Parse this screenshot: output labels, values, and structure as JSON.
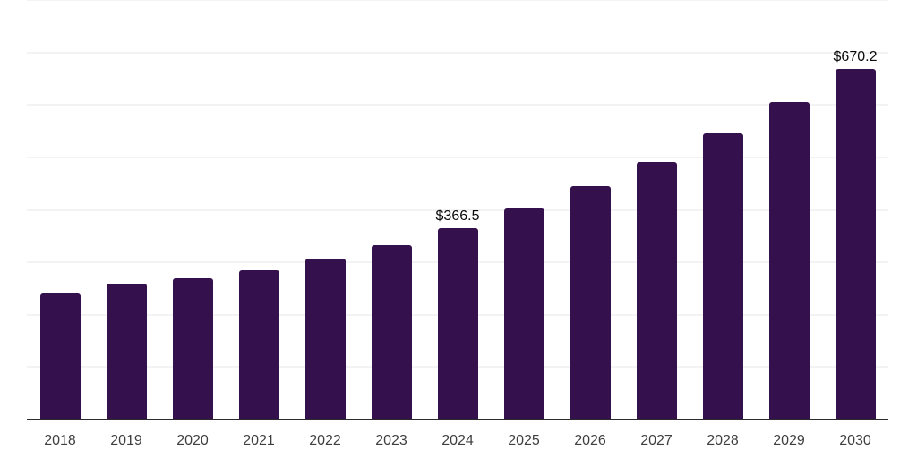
{
  "chart_data": {
    "type": "bar",
    "categories": [
      "2018",
      "2019",
      "2020",
      "2021",
      "2022",
      "2023",
      "2024",
      "2025",
      "2026",
      "2027",
      "2028",
      "2029",
      "2030"
    ],
    "values": [
      242.6,
      260.3,
      271.6,
      286.4,
      308.0,
      333.7,
      366.5,
      404.1,
      446.7,
      493.3,
      548.4,
      608.1,
      670.2
    ],
    "data_labels": [
      null,
      null,
      null,
      null,
      null,
      null,
      "$366.5",
      null,
      null,
      null,
      null,
      null,
      "$670.2"
    ],
    "value_prefix": "$",
    "title": "",
    "xlabel": "",
    "ylabel": "",
    "ylim": [
      0,
      800
    ],
    "gridline_interval": 100,
    "grid": true,
    "legend": "none",
    "y_axis_labels_visible": false
  },
  "colors": {
    "bar": "#34104c",
    "gridline": "#f3f3f5",
    "axis_line": "#2b2b2b",
    "tick_label": "#3f3f3f",
    "data_label": "#0a0a0a",
    "background": "#ffffff"
  }
}
